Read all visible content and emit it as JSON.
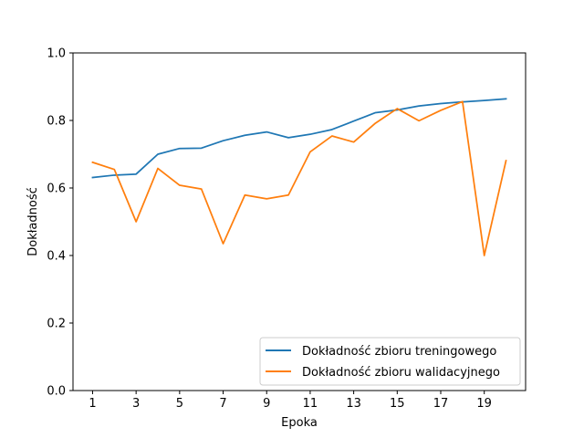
{
  "chart_data": {
    "type": "line",
    "title": "",
    "xlabel": "Epoka",
    "ylabel": "Dokładność",
    "xlim": [
      0.1,
      20.9
    ],
    "ylim": [
      0.0,
      1.0
    ],
    "xticks": [
      1,
      3,
      5,
      7,
      9,
      11,
      13,
      15,
      17,
      19
    ],
    "yticks": [
      0.0,
      0.2,
      0.4,
      0.6,
      0.8,
      1.0
    ],
    "grid": false,
    "legend_position": "lower-right",
    "x": [
      1,
      2,
      3,
      4,
      5,
      6,
      7,
      8,
      9,
      10,
      11,
      12,
      13,
      14,
      15,
      16,
      17,
      18,
      19,
      20
    ],
    "series": [
      {
        "name": "Dokładność zbioru treningowego",
        "color": "#1f77b4",
        "values": [
          0.631,
          0.638,
          0.641,
          0.7,
          0.717,
          0.718,
          0.74,
          0.756,
          0.766,
          0.749,
          0.759,
          0.773,
          0.798,
          0.823,
          0.831,
          0.843,
          0.85,
          0.855,
          0.859,
          0.864
        ]
      },
      {
        "name": "Dokładność zbioru walidacyjnego",
        "color": "#ff7f0e",
        "values": [
          0.676,
          0.655,
          0.5,
          0.658,
          0.608,
          0.597,
          0.435,
          0.579,
          0.568,
          0.579,
          0.707,
          0.754,
          0.736,
          0.792,
          0.835,
          0.799,
          0.83,
          0.856,
          0.4,
          0.681
        ]
      }
    ]
  }
}
